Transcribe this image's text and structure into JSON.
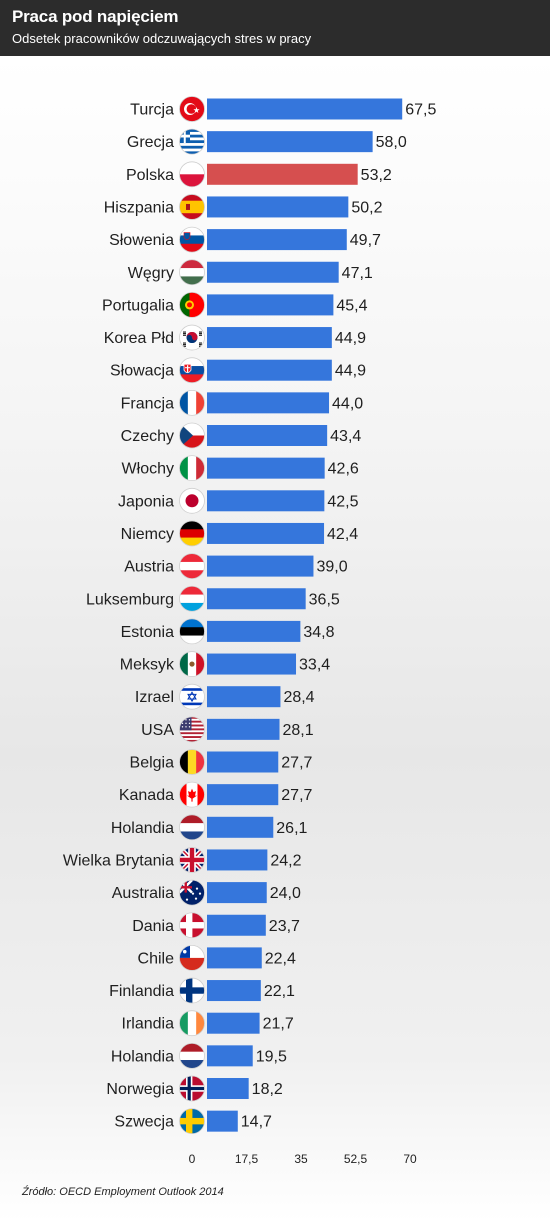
{
  "header": {
    "title": "Praca pod napięciem",
    "subtitle": "Odsetek pracowników odczuwających stres w pracy"
  },
  "source": "Źródło: OECD Employment Outlook 2014",
  "colors": {
    "bar": "#3576dc",
    "highlight": "#d64f4f",
    "header_bg": "#2c2c2c"
  },
  "chart_data": {
    "type": "bar",
    "orientation": "horizontal",
    "categories": [
      "Turcja",
      "Grecja",
      "Polska",
      "Hiszpania",
      "Słowenia",
      "Węgry",
      "Portugalia",
      "Korea Płd",
      "Słowacja",
      "Francja",
      "Czechy",
      "Włochy",
      "Japonia",
      "Niemcy",
      "Austria",
      "Luksemburg",
      "Estonia",
      "Meksyk",
      "Izrael",
      "USA",
      "Belgia",
      "Kanada",
      "Holandia",
      "Wielka Brytania",
      "Australia",
      "Dania",
      "Chile",
      "Finlandia",
      "Irlandia",
      "Holandia",
      "Norwegia",
      "Szwecja"
    ],
    "values": [
      67.5,
      58.0,
      53.2,
      50.2,
      49.7,
      47.1,
      45.4,
      44.9,
      44.9,
      44.0,
      43.4,
      42.6,
      42.5,
      42.4,
      39.0,
      36.5,
      34.8,
      33.4,
      28.4,
      28.1,
      27.7,
      27.7,
      26.1,
      24.2,
      24.0,
      23.7,
      22.4,
      22.1,
      21.7,
      19.5,
      18.2,
      14.7
    ],
    "value_labels": [
      "67,5",
      "58,0",
      "53,2",
      "50,2",
      "49,7",
      "47,1",
      "45,4",
      "44,9",
      "44,9",
      "44,0",
      "43,4",
      "42,6",
      "42,5",
      "42,4",
      "39,0",
      "36,5",
      "34,8",
      "33,4",
      "28,4",
      "28,1",
      "27,7",
      "27,7",
      "26,1",
      "24,2",
      "24,0",
      "23,7",
      "22,4",
      "22,1",
      "21,7",
      "19,5",
      "18,2",
      "14,7"
    ],
    "flags": [
      "turkey-flag-icon",
      "greece-flag-icon",
      "poland-flag-icon",
      "spain-flag-icon",
      "slovenia-flag-icon",
      "hungary-flag-icon",
      "portugal-flag-icon",
      "south-korea-flag-icon",
      "slovakia-flag-icon",
      "france-flag-icon",
      "czechia-flag-icon",
      "italy-flag-icon",
      "japan-flag-icon",
      "germany-flag-icon",
      "austria-flag-icon",
      "luxembourg-flag-icon",
      "estonia-flag-icon",
      "mexico-flag-icon",
      "israel-flag-icon",
      "usa-flag-icon",
      "belgium-flag-icon",
      "canada-flag-icon",
      "netherlands-flag-icon",
      "uk-flag-icon",
      "australia-flag-icon",
      "denmark-flag-icon",
      "chile-flag-icon",
      "finland-flag-icon",
      "ireland-flag-icon",
      "netherlands-flag-icon",
      "norway-flag-icon",
      "sweden-flag-icon"
    ],
    "highlight_category": "Polska",
    "x_ticks": [
      0,
      17.5,
      35,
      52.5,
      70
    ],
    "x_tick_labels": [
      "0",
      "17,5",
      "35",
      "52,5",
      "70"
    ],
    "xlim": [
      0,
      70
    ],
    "grid": false,
    "legend": "none"
  }
}
